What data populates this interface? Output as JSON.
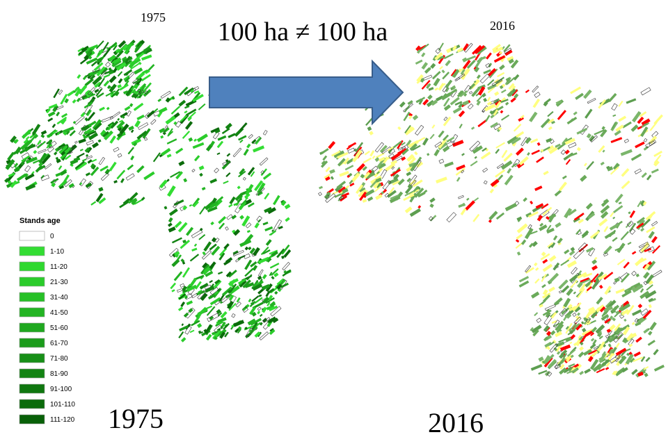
{
  "left_map": {
    "year": "1975",
    "caption": "1975"
  },
  "headline": "100 ha ≠ 100 ha",
  "right_map": {
    "year": "2016",
    "caption": "2016"
  },
  "legend": {
    "title": "Stands age",
    "items": [
      {
        "label": "0",
        "color": "#ffffff"
      },
      {
        "label": "1-10",
        "color": "#33dd33"
      },
      {
        "label": "11-20",
        "color": "#2fd82f"
      },
      {
        "label": "21-30",
        "color": "#2bcc2b"
      },
      {
        "label": "31-40",
        "color": "#27c027"
      },
      {
        "label": "41-50",
        "color": "#23b423"
      },
      {
        "label": "51-60",
        "color": "#1fa81f"
      },
      {
        "label": "61-70",
        "color": "#1b9c1b"
      },
      {
        "label": "71-80",
        "color": "#178f17"
      },
      {
        "label": "81-90",
        "color": "#138313"
      },
      {
        "label": "91-100",
        "color": "#0f770f"
      },
      {
        "label": "101-110",
        "color": "#0b6b0b"
      },
      {
        "label": "111-120",
        "color": "#086008"
      }
    ]
  }
}
